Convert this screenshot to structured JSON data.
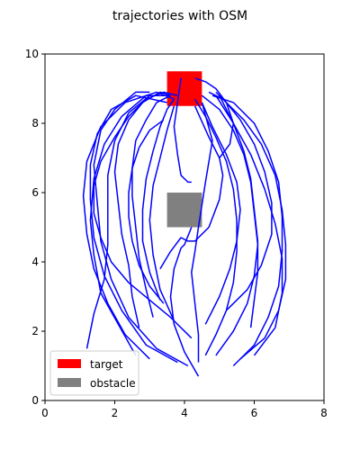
{
  "chart_data": {
    "type": "line",
    "title": "trajectories with OSM",
    "xlabel": "",
    "ylabel": "",
    "xlim": [
      0,
      8
    ],
    "ylim": [
      0,
      10
    ],
    "x_ticks": [
      0,
      2,
      4,
      6,
      8
    ],
    "y_ticks": [
      0,
      2,
      4,
      6,
      8,
      10
    ],
    "grid": false,
    "legend": {
      "placement": "lower-left",
      "entries": [
        {
          "label": "target",
          "color": "#ff0000"
        },
        {
          "label": "obstacle",
          "color": "#808080"
        }
      ]
    },
    "target": {
      "x": [
        3.5,
        4.5
      ],
      "y": [
        8.5,
        9.5
      ],
      "color": "#ff0000"
    },
    "obstacle": {
      "x": [
        3.5,
        4.5
      ],
      "y": [
        5.0,
        6.0
      ],
      "color": "#808080"
    },
    "trajectory_color": "#0000ff",
    "trajectories": [
      {
        "x": [
          4.1,
          3.2,
          2.4,
          1.9,
          1.6,
          1.5,
          1.4,
          1.6,
          2.0,
          2.6,
          3.0
        ],
        "y": [
          1.0,
          1.5,
          2.4,
          3.5,
          4.6,
          5.7,
          6.8,
          7.8,
          8.4,
          8.9,
          8.9
        ]
      },
      {
        "x": [
          3.8,
          2.9,
          2.2,
          1.7,
          1.4,
          1.3,
          1.3,
          1.5,
          1.9,
          2.6,
          3.5
        ],
        "y": [
          1.1,
          1.6,
          2.6,
          3.6,
          4.7,
          5.8,
          6.8,
          7.7,
          8.4,
          8.8,
          8.6
        ]
      },
      {
        "x": [
          3.0,
          2.3,
          1.8,
          1.4,
          1.2,
          1.1,
          1.2,
          1.6,
          2.3,
          3.2,
          3.7
        ],
        "y": [
          1.2,
          1.9,
          2.8,
          3.8,
          4.8,
          5.9,
          6.9,
          7.9,
          8.6,
          8.9,
          8.7
        ]
      },
      {
        "x": [
          2.6,
          2.1,
          1.6,
          1.4,
          1.3,
          1.4,
          1.7,
          2.2,
          2.9,
          3.6
        ],
        "y": [
          1.3,
          2.2,
          3.1,
          4.2,
          5.2,
          6.4,
          7.4,
          8.2,
          8.8,
          8.8
        ]
      },
      {
        "x": [
          1.2,
          1.4,
          1.7,
          1.8,
          1.8,
          1.8,
          2.0,
          2.4,
          3.0,
          3.6
        ],
        "y": [
          1.5,
          2.5,
          3.5,
          4.5,
          5.5,
          6.5,
          7.5,
          8.3,
          8.8,
          8.8
        ]
      },
      {
        "x": [
          2.7,
          2.5,
          2.4,
          2.2,
          2.1,
          2.0,
          2.1,
          2.4,
          2.8,
          3.3,
          3.6
        ],
        "y": [
          2.1,
          3.0,
          3.9,
          4.8,
          5.7,
          6.6,
          7.4,
          8.1,
          8.6,
          8.9,
          8.8
        ]
      },
      {
        "x": [
          3.1,
          2.9,
          2.7,
          2.6,
          2.5,
          2.5,
          2.6,
          2.9,
          3.2,
          3.6
        ],
        "y": [
          2.4,
          3.2,
          4.1,
          5.0,
          5.9,
          6.7,
          7.5,
          8.1,
          8.6,
          8.8
        ]
      },
      {
        "x": [
          3.3,
          3.0,
          2.8,
          2.8,
          2.9,
          3.1,
          3.3,
          3.5,
          3.7
        ],
        "y": [
          2.9,
          3.7,
          4.6,
          5.5,
          6.4,
          7.2,
          7.9,
          8.4,
          8.7
        ]
      },
      {
        "x": [
          3.7,
          3.3,
          3.1,
          3.0,
          3.1,
          3.3,
          3.5,
          3.7
        ],
        "y": [
          2.3,
          3.2,
          4.2,
          5.2,
          6.2,
          7.0,
          7.8,
          8.5
        ]
      },
      {
        "x": [
          3.3,
          3.6,
          3.9,
          4.1,
          4.3,
          4.7,
          5.0,
          5.1,
          5.0,
          4.7,
          4.3
        ],
        "y": [
          3.8,
          4.3,
          4.7,
          4.6,
          4.6,
          5.0,
          5.8,
          6.5,
          7.0,
          7.6,
          8.5
        ]
      },
      {
        "x": [
          4.4,
          4.0,
          3.7,
          3.6,
          3.7,
          3.9,
          4.0,
          4.2
        ],
        "y": [
          0.7,
          1.4,
          2.2,
          3.0,
          3.8,
          4.4,
          4.5,
          5.0
        ]
      },
      {
        "x": [
          4.6,
          4.9,
          5.2,
          5.4,
          5.5,
          5.5,
          5.4,
          5.2,
          4.9,
          4.6,
          4.3
        ],
        "y": [
          1.3,
          1.9,
          2.6,
          3.4,
          4.3,
          5.2,
          6.1,
          6.9,
          7.6,
          8.2,
          8.7
        ]
      },
      {
        "x": [
          4.9,
          5.4,
          5.8,
          6.0,
          6.1,
          6.0,
          5.9,
          5.7,
          5.4,
          5.0,
          4.5
        ],
        "y": [
          1.3,
          2.0,
          2.8,
          3.6,
          4.5,
          5.4,
          6.3,
          7.1,
          7.8,
          8.4,
          8.8
        ]
      },
      {
        "x": [
          5.4,
          6.0,
          6.4,
          6.7,
          6.8,
          6.8,
          6.7,
          6.4,
          6.0,
          5.4,
          4.8
        ],
        "y": [
          1.0,
          1.6,
          2.4,
          3.3,
          4.3,
          5.3,
          6.3,
          7.2,
          8.0,
          8.6,
          8.8
        ]
      },
      {
        "x": [
          5.6,
          6.3,
          6.7,
          6.9,
          6.9,
          6.8,
          6.6,
          6.2,
          5.7,
          5.1,
          4.7
        ],
        "y": [
          1.2,
          1.8,
          2.6,
          3.5,
          4.5,
          5.5,
          6.5,
          7.4,
          8.1,
          8.7,
          8.9
        ]
      },
      {
        "x": [
          6.0,
          6.6,
          6.8,
          6.8,
          6.6,
          6.3,
          5.9,
          5.4,
          4.9
        ],
        "y": [
          1.3,
          2.1,
          3.1,
          4.1,
          5.1,
          6.1,
          7.1,
          8.0,
          8.8
        ]
      },
      {
        "x": [
          5.2,
          5.8,
          6.2,
          6.5,
          6.5,
          6.3,
          6.0,
          5.6,
          5.2,
          4.9
        ],
        "y": [
          2.6,
          3.2,
          3.9,
          4.8,
          5.7,
          6.6,
          7.4,
          8.1,
          8.6,
          8.9
        ]
      },
      {
        "x": [
          4.6,
          5.0,
          5.3,
          5.5,
          5.6,
          5.5,
          5.2,
          4.8,
          4.5
        ],
        "y": [
          2.2,
          3.0,
          3.8,
          4.6,
          5.5,
          6.3,
          7.1,
          7.9,
          8.6
        ]
      },
      {
        "x": [
          5.9,
          6.0,
          6.1,
          6.1,
          6.0,
          5.9,
          5.7,
          5.4,
          5.0
        ],
        "y": [
          2.1,
          2.9,
          3.7,
          4.6,
          5.5,
          6.4,
          7.2,
          8.0,
          8.8
        ]
      },
      {
        "x": [
          4.4,
          4.4,
          4.3,
          4.2,
          4.3,
          4.4,
          4.6,
          4.8,
          4.5
        ],
        "y": [
          1.1,
          1.9,
          2.8,
          3.7,
          4.3,
          5.0,
          6.3,
          7.5,
          8.6
        ]
      },
      {
        "x": [
          3.9,
          3.8,
          3.7,
          3.8,
          3.9,
          4.1,
          4.2
        ],
        "y": [
          9.3,
          8.6,
          7.9,
          7.1,
          6.5,
          6.3,
          6.3
        ]
      },
      {
        "x": [
          4.3,
          4.6,
          4.9,
          5.2,
          5.4,
          5.3,
          5.0
        ],
        "y": [
          9.3,
          9.2,
          9.0,
          8.6,
          8.0,
          7.4,
          7.0
        ]
      },
      {
        "x": [
          3.4,
          3.0,
          2.7,
          2.5,
          2.4,
          2.4,
          2.5,
          2.7,
          3.0,
          3.4
        ],
        "y": [
          2.8,
          3.3,
          3.9,
          4.6,
          5.3,
          6.0,
          6.7,
          7.3,
          7.8,
          8.1
        ]
      },
      {
        "x": [
          4.2,
          3.6,
          3.0,
          2.4,
          1.9,
          1.6,
          1.4,
          1.4,
          1.6,
          2.0,
          2.4,
          2.9,
          3.4,
          3.8
        ],
        "y": [
          1.8,
          2.4,
          2.9,
          3.4,
          4.0,
          4.7,
          5.4,
          6.2,
          6.9,
          7.6,
          8.2,
          8.7,
          8.9,
          8.8
        ]
      }
    ]
  }
}
